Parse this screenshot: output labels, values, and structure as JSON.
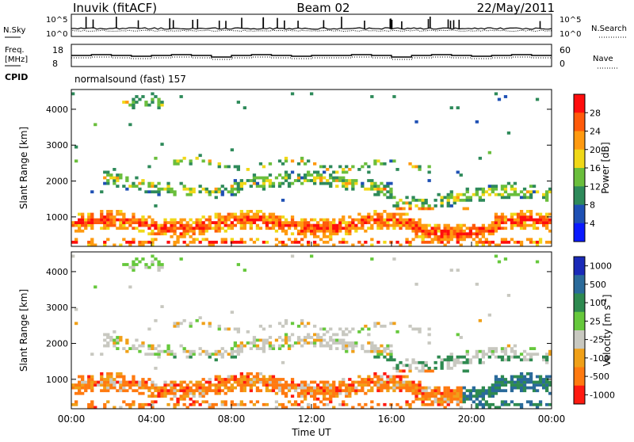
{
  "header": {
    "radar": "Inuvik (fitACF)",
    "beam": "Beam 02",
    "date": "22/May/2011"
  },
  "noise_panel": {
    "left_label": "N.Sky",
    "right_label": "N.Search",
    "left_ticks": [
      "10^5",
      "10^0"
    ],
    "right_ticks": [
      "10^5",
      "10^0"
    ]
  },
  "freq_panel": {
    "left_label_1": "Freq.",
    "left_label_2": "[MHz]",
    "right_label": "Nave",
    "left_ticks": [
      "18",
      "8"
    ],
    "right_ticks": [
      "60",
      "0"
    ]
  },
  "cpid": {
    "label": "CPID",
    "value": "normalsound (fast) 157"
  },
  "chart_data": [
    {
      "type": "heatmap",
      "name": "power",
      "ylabel": "Slant Range [km]",
      "ylim": [
        180,
        4550
      ],
      "yticks": [
        1000,
        2000,
        3000,
        4000
      ],
      "colorbar": {
        "label": "Power [dB]",
        "range": [
          0,
          32
        ],
        "ticks": [
          "4",
          "8",
          "12",
          "16",
          "20",
          "24",
          "28"
        ],
        "colors": [
          "#0a1aff",
          "#1e50b4",
          "#2e8a5a",
          "#6abe3c",
          "#f0d818",
          "#ff9a10",
          "#ff5a0a",
          "#ff0d0d"
        ]
      }
    },
    {
      "type": "heatmap",
      "name": "velocity",
      "ylabel": "Slant Range [km]",
      "xlabel": "Time UT",
      "ylim": [
        180,
        4550
      ],
      "yticks": [
        1000,
        2000,
        3000,
        4000
      ],
      "xticks": [
        "00:00",
        "04:00",
        "08:00",
        "12:00",
        "16:00",
        "20:00",
        "00:00"
      ],
      "colorbar": {
        "label": "Velocity [m s^-1]",
        "ticks": [
          "1000",
          "500",
          "100",
          "25",
          "-25",
          "-100",
          "-500",
          "-1000"
        ],
        "colors": [
          "#1a2ab8",
          "#2a6a9a",
          "#2e8a50",
          "#66c83c",
          "#c8c8c0",
          "#f0a018",
          "#ff7a10",
          "#ff1a10"
        ]
      }
    }
  ],
  "style": {
    "plot_frame": "#000000",
    "ground_scatter": "#9a9a9a"
  }
}
